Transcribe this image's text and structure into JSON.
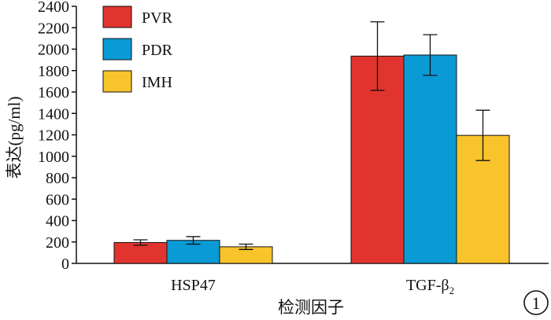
{
  "chart_data": {
    "type": "bar",
    "categories": [
      "HSP47",
      "TGF-β"
    ],
    "category_subscripts": [
      "",
      "2"
    ],
    "series": [
      {
        "name": "PVR",
        "color": "#e2342f",
        "values": [
          195,
          1935
        ],
        "errors": [
          25,
          320
        ]
      },
      {
        "name": "PDR",
        "color": "#0a9ad6",
        "values": [
          215,
          1945
        ],
        "errors": [
          35,
          190
        ]
      },
      {
        "name": "IMH",
        "color": "#f9c32b",
        "values": [
          155,
          1195
        ],
        "errors": [
          25,
          235
        ]
      }
    ],
    "xlabel": "检测因子",
    "ylabel": "表达(pg/ml)",
    "ylim": [
      0,
      2400
    ],
    "yticks": [
      0,
      200,
      400,
      600,
      800,
      1000,
      1200,
      1400,
      1600,
      1800,
      2000,
      2200,
      2400
    ],
    "legend_position": "top-left",
    "grid": false
  },
  "panel_number": "1"
}
